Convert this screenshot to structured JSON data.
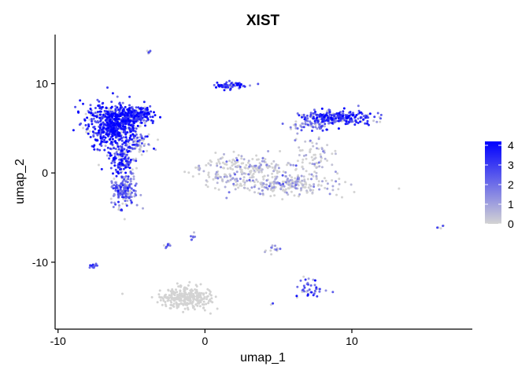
{
  "chart_data": {
    "type": "scatter",
    "title": "XIST",
    "xlabel": "umap_1",
    "ylabel": "umap_2",
    "xlim": [
      -10.2,
      18.2
    ],
    "ylim": [
      -17.5,
      15.5
    ],
    "x_ticks": [
      -10,
      0,
      10
    ],
    "x_tick_labels": [
      "-10",
      "0",
      "10"
    ],
    "y_ticks": [
      -10,
      0,
      10
    ],
    "y_tick_labels": [
      "-10",
      "0",
      "10"
    ],
    "grid": false,
    "legend": {
      "placement": "right",
      "type": "colorbar",
      "min": 0,
      "max": 4.2,
      "ticks": [
        0,
        1,
        2,
        3,
        4
      ],
      "tick_labels": [
        "0",
        "1",
        "2",
        "3",
        "4"
      ]
    },
    "colors": {
      "low": "#d3d3d3",
      "high": "#0000ff"
    },
    "clusters": [
      {
        "cx": -6.2,
        "cy": 5.3,
        "sx": 1.0,
        "sy": 1.3,
        "n": 650,
        "expr": 3.3
      },
      {
        "cx": -4.8,
        "cy": 6.5,
        "sx": 0.7,
        "sy": 0.5,
        "n": 200,
        "expr": 3.0
      },
      {
        "cx": -5.6,
        "cy": 1.6,
        "sx": 0.45,
        "sy": 0.9,
        "n": 130,
        "expr": 2.7
      },
      {
        "cx": -5.5,
        "cy": -1.8,
        "sx": 0.45,
        "sy": 1.0,
        "n": 170,
        "expr": 2.0
      },
      {
        "cx": -4.4,
        "cy": 3.0,
        "sx": 0.35,
        "sy": 0.6,
        "n": 40,
        "expr": 0.2
      },
      {
        "cx": 1.7,
        "cy": 9.8,
        "sx": 0.5,
        "sy": 0.2,
        "n": 70,
        "expr": 2.5
      },
      {
        "cx": -3.8,
        "cy": 13.5,
        "sx": 0.08,
        "sy": 0.08,
        "n": 8,
        "expr": 2.5
      },
      {
        "cx": 9.0,
        "cy": 6.2,
        "sx": 1.2,
        "sy": 0.4,
        "n": 260,
        "expr": 3.0
      },
      {
        "cx": 7.2,
        "cy": 5.4,
        "sx": 0.7,
        "sy": 0.3,
        "n": 60,
        "expr": 2.0
      },
      {
        "cx": 7.5,
        "cy": 2.2,
        "sx": 0.6,
        "sy": 1.0,
        "n": 60,
        "expr": 0.2
      },
      {
        "cx": 3.0,
        "cy": 0.8,
        "sx": 1.6,
        "sy": 0.6,
        "n": 170,
        "expr": 0.15
      },
      {
        "cx": 5.5,
        "cy": -1.2,
        "sx": 1.8,
        "sy": 0.6,
        "n": 240,
        "expr": 0.15
      },
      {
        "cx": 1.5,
        "cy": -0.8,
        "sx": 0.9,
        "sy": 0.5,
        "n": 60,
        "expr": 0.15
      },
      {
        "cx": -0.5,
        "cy": 0.5,
        "sx": 0.1,
        "sy": 0.1,
        "n": 5,
        "expr": 0.5
      },
      {
        "cx": -2.6,
        "cy": -8.1,
        "sx": 0.12,
        "sy": 0.15,
        "n": 10,
        "expr": 2.0
      },
      {
        "cx": -0.8,
        "cy": -7.3,
        "sx": 0.1,
        "sy": 0.3,
        "n": 10,
        "expr": 2.0
      },
      {
        "cx": 4.7,
        "cy": -8.6,
        "sx": 0.25,
        "sy": 0.3,
        "n": 14,
        "expr": 1.5
      },
      {
        "cx": -7.6,
        "cy": -10.4,
        "sx": 0.2,
        "sy": 0.12,
        "n": 12,
        "expr": 2.5
      },
      {
        "cx": 7.3,
        "cy": -13.0,
        "sx": 0.5,
        "sy": 0.6,
        "n": 40,
        "expr": 2.5
      },
      {
        "cx": -1.3,
        "cy": -14.0,
        "sx": 0.9,
        "sy": 0.6,
        "n": 280,
        "expr": 0.0
      },
      {
        "cx": 16.0,
        "cy": -6.1,
        "sx": 0.1,
        "sy": 0.1,
        "n": 5,
        "expr": 3.0
      },
      {
        "cx": 4.6,
        "cy": -14.7,
        "sx": 0.05,
        "sy": 0.05,
        "n": 2,
        "expr": 3.5
      }
    ]
  }
}
